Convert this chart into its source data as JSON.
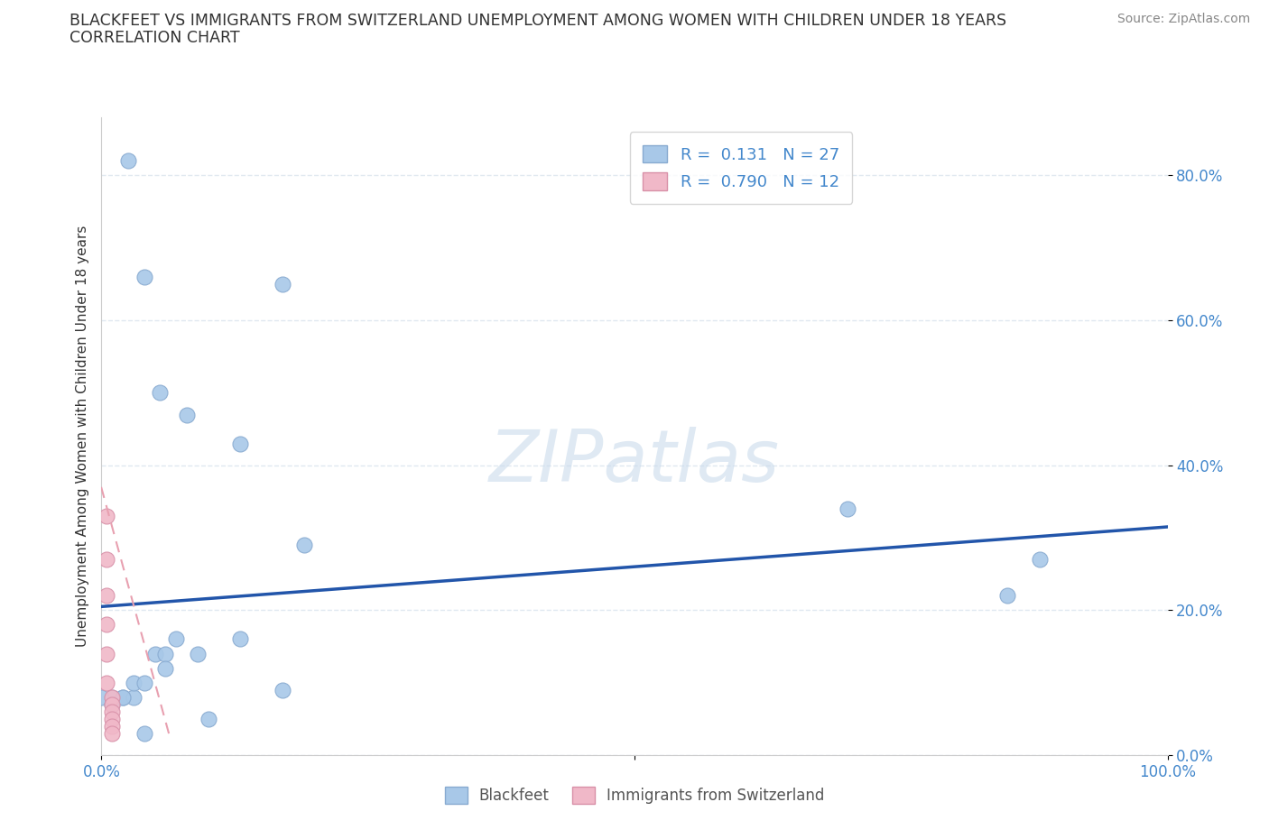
{
  "title_line1": "BLACKFEET VS IMMIGRANTS FROM SWITZERLAND UNEMPLOYMENT AMONG WOMEN WITH CHILDREN UNDER 18 YEARS",
  "title_line2": "CORRELATION CHART",
  "source_text": "Source: ZipAtlas.com",
  "ylabel": "Unemployment Among Women with Children Under 18 years",
  "watermark": "ZIPatlas",
  "xlim": [
    0,
    1.0
  ],
  "ylim": [
    0,
    0.88
  ],
  "yticks": [
    0.0,
    0.2,
    0.4,
    0.6,
    0.8
  ],
  "ytick_labels_right": [
    "0.0%",
    "20.0%",
    "40.0%",
    "60.0%",
    "80.0%"
  ],
  "xtick_positions": [
    0.0,
    0.5,
    1.0
  ],
  "xtick_labels": [
    "0.0%",
    "",
    "100.0%"
  ],
  "blue_r": 0.131,
  "blue_n": 27,
  "pink_r": 0.79,
  "pink_n": 12,
  "blue_color": "#a8c8e8",
  "pink_color": "#f0b8c8",
  "blue_edge_color": "#88aad0",
  "pink_edge_color": "#d890a8",
  "blue_line_color": "#2255aa",
  "pink_line_color": "#e8a0b0",
  "background_color": "#ffffff",
  "grid_color": "#e0e8f0",
  "title_color": "#333333",
  "source_color": "#888888",
  "tick_color": "#4488cc",
  "ylabel_color": "#333333",
  "blue_scatter_x": [
    0.025,
    0.04,
    0.055,
    0.08,
    0.13,
    0.17,
    0.19,
    0.01,
    0.02,
    0.03,
    0.03,
    0.04,
    0.04,
    0.05,
    0.06,
    0.06,
    0.07,
    0.09,
    0.1,
    0.13,
    0.17,
    0.0,
    0.01,
    0.02,
    0.7,
    0.85,
    0.88
  ],
  "blue_scatter_y": [
    0.82,
    0.66,
    0.5,
    0.47,
    0.43,
    0.65,
    0.29,
    0.08,
    0.08,
    0.08,
    0.1,
    0.1,
    0.03,
    0.14,
    0.14,
    0.12,
    0.16,
    0.14,
    0.05,
    0.16,
    0.09,
    0.08,
    0.07,
    0.08,
    0.34,
    0.22,
    0.27
  ],
  "pink_scatter_x": [
    0.005,
    0.005,
    0.005,
    0.005,
    0.005,
    0.005,
    0.01,
    0.01,
    0.01,
    0.01,
    0.01,
    0.01
  ],
  "pink_scatter_y": [
    0.33,
    0.27,
    0.22,
    0.18,
    0.14,
    0.1,
    0.08,
    0.07,
    0.06,
    0.05,
    0.04,
    0.03
  ],
  "blue_trend_x0": 0.0,
  "blue_trend_x1": 1.0,
  "blue_trend_y0": 0.205,
  "blue_trend_y1": 0.315,
  "pink_trend_x0": -0.005,
  "pink_trend_x1": 0.065,
  "pink_trend_y0": 0.395,
  "pink_trend_y1": 0.02
}
